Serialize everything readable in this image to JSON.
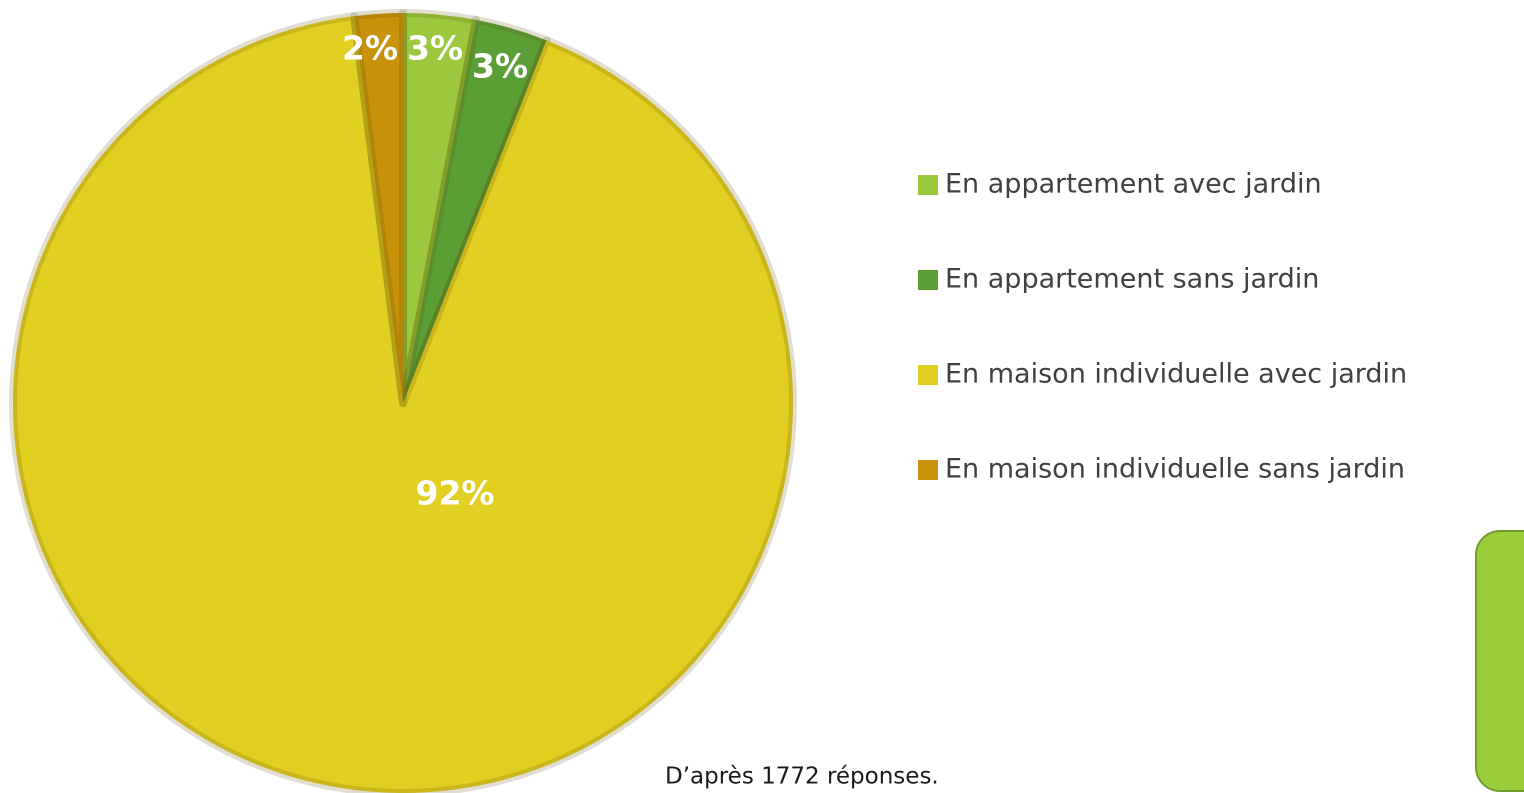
{
  "chart_data": {
    "type": "pie",
    "categories": [
      "En appartement avec jardin",
      "En appartement sans jardin",
      "En maison individuelle avec jardin",
      "En maison individuelle sans jardin"
    ],
    "values": [
      3,
      3,
      92,
      2
    ],
    "value_labels": [
      "3%",
      "3%",
      "92%",
      "2%"
    ],
    "colors": [
      "#9bc83c",
      "#5c9e36",
      "#e1cf22",
      "#c8920a"
    ],
    "legend": "right",
    "annotation": "D’après 1772 réponses."
  }
}
